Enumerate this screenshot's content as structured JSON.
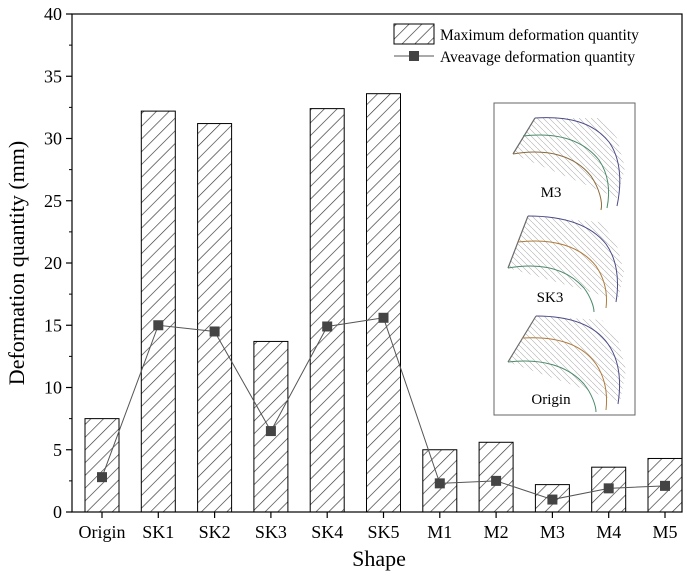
{
  "chart_data": {
    "type": "bar",
    "xlabel": "Shape",
    "ylabel": "Deformation quantity (mm)",
    "ylim": [
      0,
      40
    ],
    "yticks": [
      0,
      5,
      10,
      15,
      20,
      25,
      30,
      35,
      40
    ],
    "categories": [
      "Origin",
      "SK1",
      "SK2",
      "SK3",
      "SK4",
      "SK5",
      "M1",
      "M2",
      "M3",
      "M4",
      "M5"
    ],
    "grid": false,
    "legend_position": "top-right",
    "series": [
      {
        "name": "Maximum deformation quantity",
        "type": "bar",
        "pattern": "diagonal-hatch",
        "values": [
          7.5,
          32.2,
          31.2,
          13.7,
          32.4,
          33.6,
          5.0,
          5.6,
          2.2,
          3.6,
          4.3
        ]
      },
      {
        "name": "Aveavage deformation quantity",
        "type": "line",
        "marker": "square",
        "values": [
          2.8,
          15.0,
          14.5,
          6.5,
          14.9,
          15.6,
          2.3,
          2.5,
          1.0,
          1.9,
          2.1
        ]
      }
    ],
    "inset": {
      "labels": [
        "M3",
        "SK3",
        "Origin"
      ]
    }
  }
}
